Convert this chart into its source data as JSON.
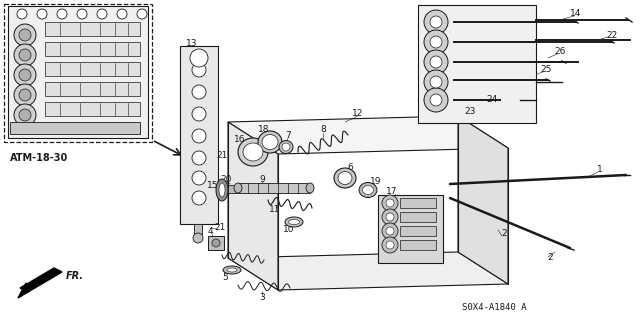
{
  "background_color": "#ffffff",
  "line_color": "#1a1a1a",
  "gray_fill": "#d8d8d8",
  "light_gray": "#eeeeee",
  "part_code": "S0X4-A1840 A",
  "reference_label": "ATM-18-30",
  "fig_width": 6.4,
  "fig_height": 3.19,
  "dpi": 100
}
